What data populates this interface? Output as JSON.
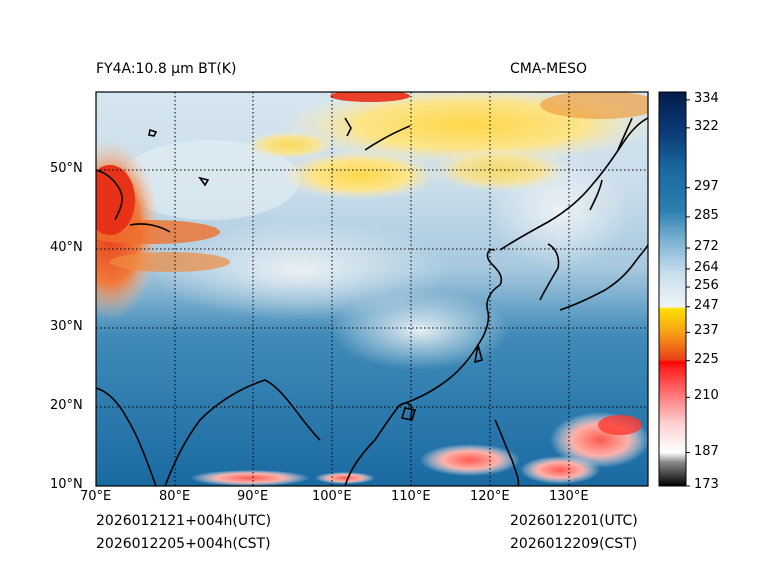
{
  "header": {
    "product_title": "FY4A:10.8 µm BT(K)",
    "source_label": "CMA-MESO"
  },
  "footer": {
    "init_utc": "2026012121+004h(UTC)",
    "init_cst": "2026012205+004h(CST)",
    "valid_utc": "2026012201(UTC)",
    "valid_cst": "2026012209(CST)"
  },
  "map": {
    "lon_range": [
      70,
      140
    ],
    "lat_range": [
      10,
      60
    ],
    "lon_ticks": [
      {
        "value": 70,
        "label": "70°E"
      },
      {
        "value": 80,
        "label": "80°E"
      },
      {
        "value": 90,
        "label": "90°E"
      },
      {
        "value": 100,
        "label": "100°E"
      },
      {
        "value": 110,
        "label": "110°E"
      },
      {
        "value": 120,
        "label": "120°E"
      },
      {
        "value": 130,
        "label": "130°E"
      }
    ],
    "lat_ticks": [
      {
        "value": 10,
        "label": "10°N"
      },
      {
        "value": 20,
        "label": "20°N"
      },
      {
        "value": 30,
        "label": "30°N"
      },
      {
        "value": 40,
        "label": "40°N"
      },
      {
        "value": 50,
        "label": "50°N"
      }
    ]
  },
  "colorbar": {
    "range": [
      173,
      338
    ],
    "ticks": [
      {
        "value": 173,
        "label": "173"
      },
      {
        "value": 187,
        "label": "187"
      },
      {
        "value": 210,
        "label": "210"
      },
      {
        "value": 225,
        "label": "225"
      },
      {
        "value": 237,
        "label": "237"
      },
      {
        "value": 247,
        "label": "247"
      },
      {
        "value": 256,
        "label": "256"
      },
      {
        "value": 264,
        "label": "264"
      },
      {
        "value": 272,
        "label": "272"
      },
      {
        "value": 285,
        "label": "285"
      },
      {
        "value": 297,
        "label": "297"
      },
      {
        "value": 322,
        "label": "322"
      },
      {
        "value": 334,
        "label": "334"
      }
    ],
    "colors": {
      "black": "#000000",
      "gray": "#a8a8a8",
      "white": "#ffffff",
      "pink": "#ffb3b3",
      "red": "#ff0000",
      "orange_red": "#f03a10",
      "orange": "#f7a21a",
      "yellow": "#ffe000",
      "pale_blue": "#d8e8f2",
      "light_blue": "#9cc4dc",
      "mid_blue": "#3a86b4",
      "blue": "#1c6aa0",
      "dark_blue": "#0c3a78",
      "navy": "#031c4a"
    }
  }
}
